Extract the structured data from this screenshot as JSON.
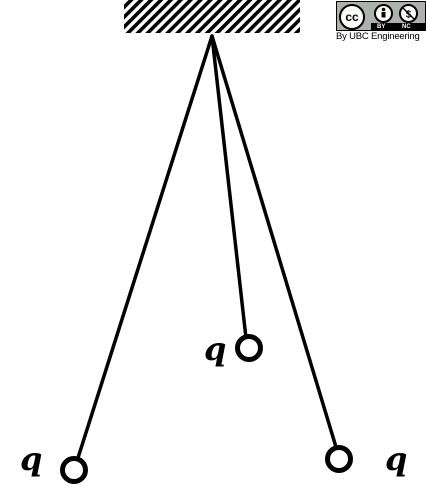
{
  "figure": {
    "charges": [
      {
        "id": "left",
        "label": "q"
      },
      {
        "id": "middle",
        "label": "q"
      },
      {
        "id": "right",
        "label": "q"
      }
    ]
  },
  "license": {
    "cc_text": "cc",
    "by_icon": "person-icon",
    "nc_icon": "no-dollar-icon",
    "by_tag": "BY",
    "nc_tag": "NC",
    "credit": "By UBC Engineering"
  }
}
